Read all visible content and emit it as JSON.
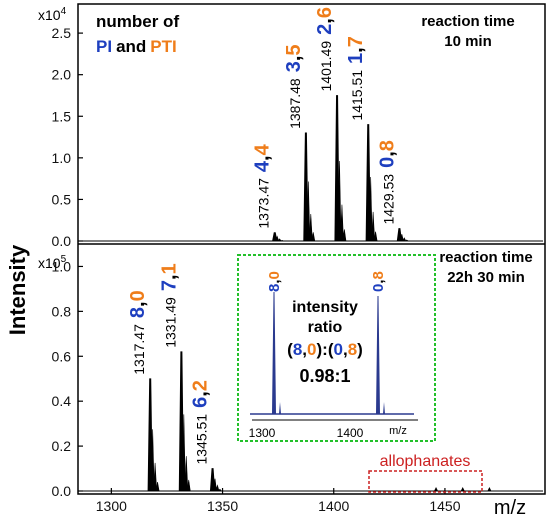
{
  "chart_data": {
    "type": "mass-spectrum",
    "ylabel": "Intensity",
    "xlabel": "m/z",
    "colors": {
      "PI": "#1e3fbf",
      "PTI": "#ef7d1a",
      "trace": "#000000",
      "inset_trace": "#2b3a8f",
      "inset_border": "#22c02a",
      "allophanates": "#cc2020"
    },
    "top": {
      "exponent_label": "x10",
      "exponent_power": "4",
      "legend": {
        "line1": "number of",
        "pi": "PI",
        "and": "and",
        "pti": "PTI"
      },
      "condition_line1": "reaction time",
      "condition_line2": "10 min",
      "yticks": [
        "0.0",
        "0.5",
        "1.0",
        "1.5",
        "2.0",
        "2.5"
      ],
      "ymax_value": 2.85,
      "peaks": [
        {
          "mz": 1373.47,
          "intensity": 0.1,
          "mz_label": "1373.47",
          "pi": "4",
          "pti": "4"
        },
        {
          "mz": 1387.48,
          "intensity": 1.3,
          "mz_label": "1387.48",
          "pi": "3",
          "pti": "5"
        },
        {
          "mz": 1401.49,
          "intensity": 1.75,
          "mz_label": "1401.49",
          "pi": "2",
          "pti": "6"
        },
        {
          "mz": 1415.51,
          "intensity": 1.4,
          "mz_label": "1415.51",
          "pi": "1",
          "pti": "7"
        },
        {
          "mz": 1429.53,
          "intensity": 0.15,
          "mz_label": "1429.53",
          "pi": "0",
          "pti": "8"
        }
      ]
    },
    "bottom": {
      "exponent_label": "x10",
      "exponent_power": "5",
      "condition_line1": "reaction time",
      "condition_line2": "22h 30 min",
      "yticks": [
        "0.0",
        "0.2",
        "0.4",
        "0.6",
        "0.8",
        "1.0"
      ],
      "ymax_value": 1.1,
      "peaks": [
        {
          "mz": 1317.47,
          "intensity": 0.5,
          "mz_label": "1317.47",
          "pi": "8",
          "pti": "0"
        },
        {
          "mz": 1331.49,
          "intensity": 0.62,
          "mz_label": "1331.49",
          "pi": "7",
          "pti": "1"
        },
        {
          "mz": 1345.51,
          "intensity": 0.1,
          "mz_label": "1345.51",
          "pi": "6",
          "pti": "2"
        }
      ],
      "allophanates_label": "allophanates"
    },
    "inset": {
      "title_line1": "intensity",
      "title_line2": "ratio",
      "ratio_expr": {
        "open": "(",
        "a_pi": "8",
        "comma": ",",
        "a_pti": "0",
        "mid": "):(",
        "b_pi": "0",
        "b_pti": "8",
        "close": ")"
      },
      "ratio_value": "0.98:1",
      "peak_left": {
        "pi": "8",
        "pti": "0"
      },
      "peak_right": {
        "pi": "0",
        "pti": "8"
      },
      "xticks": [
        "1300",
        "1400"
      ],
      "xlabel": "m/z"
    },
    "xticks": [
      "1300",
      "1350",
      "1400",
      "1450"
    ],
    "xrange": [
      1285,
      1495
    ]
  }
}
